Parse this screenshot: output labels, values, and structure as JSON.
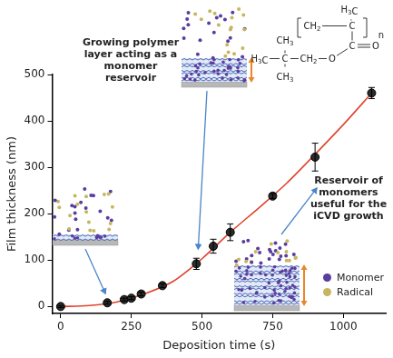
{
  "chart_data": {
    "type": "scatter",
    "x_label": "Deposition time (s)",
    "y_label": "Film thickness (nm)",
    "xlim": [
      -30,
      1150
    ],
    "ylim": [
      -15,
      500
    ],
    "xticks": [
      0,
      250,
      500,
      750,
      1000
    ],
    "yticks": [
      0,
      100,
      200,
      300,
      400,
      500
    ],
    "grid": false,
    "series": [
      {
        "type": "line",
        "line_style": "solid",
        "color": "#e0442e",
        "x": [
          0,
          100,
          200,
          300,
          400,
          500,
          600,
          700,
          800,
          900,
          1000,
          1100
        ],
        "values": [
          0,
          2,
          10,
          28,
          55,
          103,
          160,
          212,
          266,
          328,
          392,
          460
        ]
      },
      {
        "type": "scatter",
        "marker": "circle",
        "color": "#2b2b2b",
        "x": [
          0,
          165,
          225,
          250,
          285,
          360,
          480,
          540,
          600,
          750,
          900,
          1100
        ],
        "values": [
          0,
          8,
          15,
          18,
          27,
          45,
          92,
          130,
          160,
          238,
          322,
          460
        ],
        "errors": [
          2,
          3,
          3,
          3,
          4,
          4,
          12,
          15,
          18,
          5,
          30,
          12
        ]
      }
    ],
    "annotations": [
      {
        "text": "Growing polymer layer acting as a monomer reservoir"
      },
      {
        "text": "Reservoir of monomers useful for the iCVD growth"
      }
    ],
    "dot_legend": [
      {
        "name": "Monomer",
        "color": "#5a3d9e"
      },
      {
        "name": "Radical",
        "color": "#c8b560"
      }
    ],
    "structure": {
      "labels": [
        "H3C",
        "CH2",
        "C",
        "n",
        "C",
        "O",
        "O",
        "CH2",
        "C",
        "CH3",
        "CH3",
        "H3C"
      ]
    }
  }
}
